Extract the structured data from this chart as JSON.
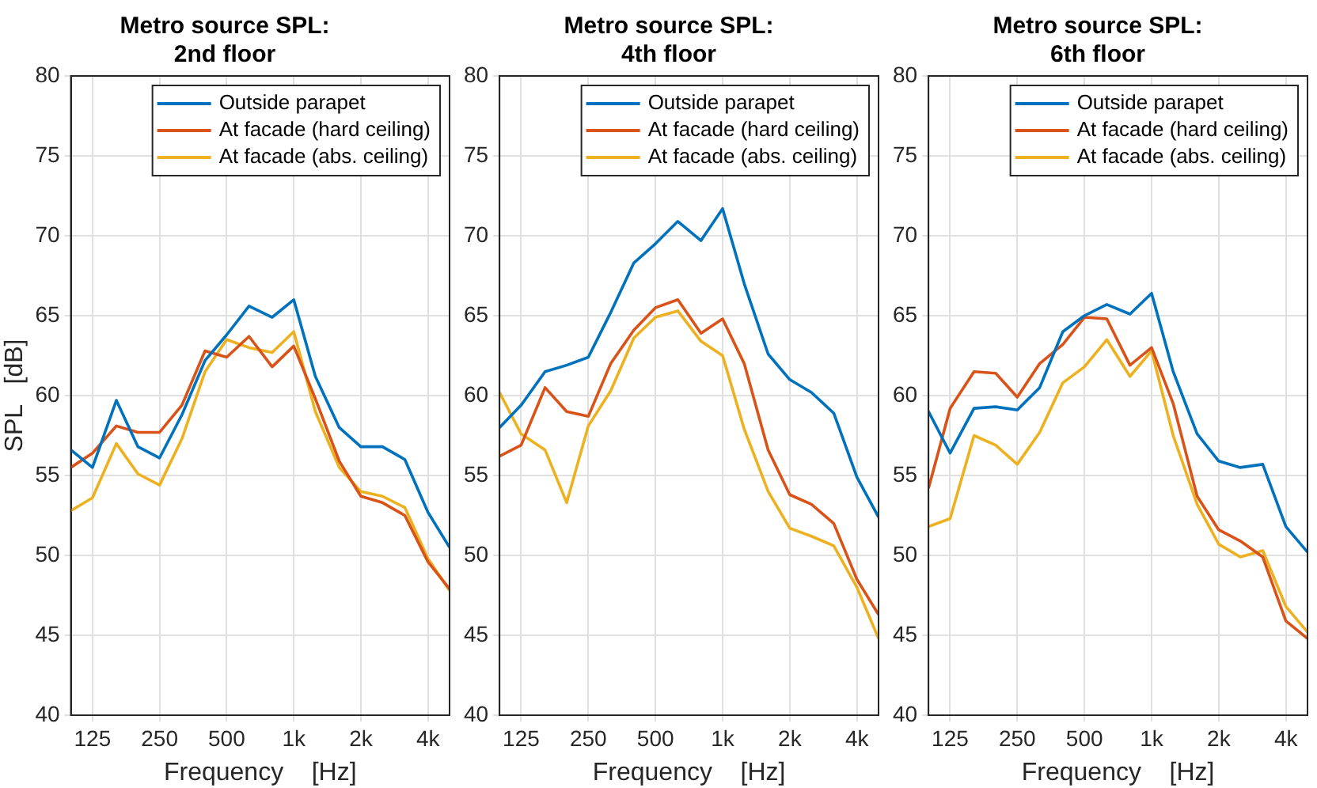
{
  "chart_data": [
    {
      "type": "line",
      "title": "Metro source SPL:\n2nd floor",
      "xlabel": "Frequency    [Hz]",
      "ylabel": "SPL   [dB]",
      "log": "x",
      "grid": true,
      "legend": "top right",
      "x": [
        100,
        125,
        160,
        200,
        250,
        315,
        400,
        500,
        630,
        800,
        1000,
        1250,
        1600,
        2000,
        2500,
        3150,
        4000,
        5000
      ],
      "xlim": [
        100,
        5000
      ],
      "xticks": [
        125,
        250,
        500,
        {
          "value": 1000,
          "label": "1k"
        },
        {
          "value": 2000,
          "label": "2k"
        },
        {
          "value": 4000,
          "label": "4k"
        }
      ],
      "ylim": [
        40,
        80
      ],
      "yticks": [
        40,
        45,
        50,
        55,
        60,
        65,
        70,
        75,
        80
      ],
      "series": [
        {
          "name": "Outside parapet",
          "color": "#0072bd",
          "values": [
            56.6,
            55.5,
            59.7,
            56.8,
            56.1,
            58.8,
            62.2,
            63.8,
            65.6,
            64.9,
            66.0,
            61.2,
            58.0,
            56.8,
            56.8,
            56.0,
            52.7,
            50.5
          ]
        },
        {
          "name": "At facade (hard ceiling)",
          "color": "#d95319",
          "values": [
            55.5,
            56.4,
            58.1,
            57.7,
            57.7,
            59.4,
            62.8,
            62.4,
            63.7,
            61.8,
            63.1,
            59.8,
            55.9,
            53.7,
            53.3,
            52.5,
            49.6,
            47.9
          ]
        },
        {
          "name": "At facade (abs. ceiling)",
          "color": "#edb120",
          "values": [
            52.8,
            53.6,
            57.0,
            55.1,
            54.4,
            57.3,
            61.5,
            63.5,
            63.0,
            62.7,
            64.0,
            59.0,
            55.5,
            54.0,
            53.7,
            53.0,
            49.8,
            47.8
          ]
        }
      ]
    },
    {
      "type": "line",
      "title": "Metro source SPL:\n4th floor",
      "xlabel": "Frequency    [Hz]",
      "log": "x",
      "grid": true,
      "legend": "top right",
      "x": [
        100,
        125,
        160,
        200,
        250,
        315,
        400,
        500,
        630,
        800,
        1000,
        1250,
        1600,
        2000,
        2500,
        3150,
        4000,
        5000
      ],
      "xlim": [
        100,
        5000
      ],
      "xticks": [
        125,
        250,
        500,
        {
          "value": 1000,
          "label": "1k"
        },
        {
          "value": 2000,
          "label": "2k"
        },
        {
          "value": 4000,
          "label": "4k"
        }
      ],
      "ylim": [
        40,
        80
      ],
      "yticks": [
        40,
        45,
        50,
        55,
        60,
        65,
        70,
        75,
        80
      ],
      "series": [
        {
          "name": "Outside parapet",
          "color": "#0072bd",
          "values": [
            58.0,
            59.4,
            61.5,
            61.9,
            62.4,
            65.2,
            68.3,
            69.5,
            70.9,
            69.7,
            71.7,
            67.0,
            62.6,
            61.0,
            60.2,
            58.9,
            54.9,
            52.4
          ]
        },
        {
          "name": "At facade (hard ceiling)",
          "color": "#d95319",
          "values": [
            56.2,
            56.9,
            60.5,
            59.0,
            58.7,
            62.0,
            64.1,
            65.5,
            66.0,
            63.9,
            64.8,
            62.0,
            56.6,
            53.8,
            53.2,
            52.0,
            48.5,
            46.3
          ]
        },
        {
          "name": "At facade (abs. ceiling)",
          "color": "#edb120",
          "values": [
            60.2,
            57.6,
            56.6,
            53.3,
            58.1,
            60.3,
            63.6,
            64.9,
            65.3,
            63.4,
            62.5,
            57.9,
            54.0,
            51.7,
            51.2,
            50.6,
            48.0,
            44.8
          ]
        }
      ]
    },
    {
      "type": "line",
      "title": "Metro source SPL:\n6th floor",
      "xlabel": "Frequency    [Hz]",
      "log": "x",
      "grid": true,
      "legend": "top right",
      "x": [
        100,
        125,
        160,
        200,
        250,
        315,
        400,
        500,
        630,
        800,
        1000,
        1250,
        1600,
        2000,
        2500,
        3150,
        4000,
        5000
      ],
      "xlim": [
        100,
        5000
      ],
      "xticks": [
        125,
        250,
        500,
        {
          "value": 1000,
          "label": "1k"
        },
        {
          "value": 2000,
          "label": "2k"
        },
        {
          "value": 4000,
          "label": "4k"
        }
      ],
      "ylim": [
        40,
        80
      ],
      "yticks": [
        40,
        45,
        50,
        55,
        60,
        65,
        70,
        75,
        80
      ],
      "series": [
        {
          "name": "Outside parapet",
          "color": "#0072bd",
          "values": [
            59.0,
            56.4,
            59.2,
            59.3,
            59.1,
            60.5,
            64.0,
            65.0,
            65.7,
            65.1,
            66.4,
            61.5,
            57.6,
            55.9,
            55.5,
            55.7,
            51.8,
            50.2
          ]
        },
        {
          "name": "At facade (hard ceiling)",
          "color": "#d95319",
          "values": [
            54.2,
            59.2,
            61.5,
            61.4,
            59.9,
            62.0,
            63.2,
            64.9,
            64.8,
            61.9,
            63.0,
            59.5,
            53.7,
            51.6,
            50.9,
            49.9,
            45.9,
            44.8
          ]
        },
        {
          "name": "At facade (abs. ceiling)",
          "color": "#edb120",
          "values": [
            51.8,
            52.3,
            57.5,
            56.9,
            55.7,
            57.7,
            60.8,
            61.8,
            63.5,
            61.2,
            62.8,
            57.5,
            53.2,
            50.7,
            49.9,
            50.3,
            46.8,
            45.2
          ]
        }
      ]
    }
  ]
}
